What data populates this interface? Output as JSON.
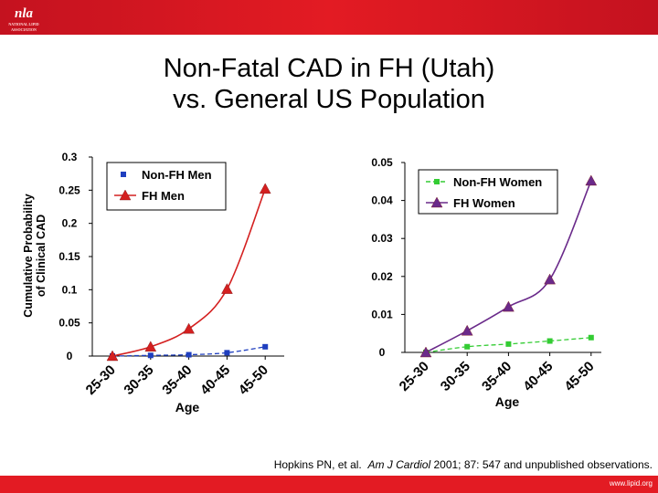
{
  "header": {
    "logo_text": "nla",
    "logo_subtext": "NATIONAL LIPID ASSOCIATION"
  },
  "title": {
    "line1": "Non-Fatal CAD in FH (Utah)",
    "line2": "vs. General US Population"
  },
  "colors": {
    "banner": "#e31b23",
    "non_fh_men": "#1f3fbf",
    "fh_men": "#d42020",
    "non_fh_women": "#33cc33",
    "fh_women": "#6a2a8a"
  },
  "chart_data": [
    {
      "type": "line",
      "ylabel": "Cumulative Probability of Clinical CAD",
      "ylabel_lines": [
        "Cumulative Probability",
        "of Clinical CAD"
      ],
      "xlabel": "Age",
      "categories": [
        "25-30",
        "30-35",
        "35-40",
        "40-45",
        "45-50"
      ],
      "ylim": [
        0,
        0.3
      ],
      "yticks": [
        "0",
        "0.05",
        "0.1",
        "0.15",
        "0.2",
        "0.25",
        "0.3"
      ],
      "legend_position": "top-left",
      "series": [
        {
          "name": "Non-FH Men",
          "values": [
            0,
            0.001,
            0.002,
            0.005,
            0.014
          ],
          "marker": "square",
          "style": "dashed",
          "color": "#1f3fbf"
        },
        {
          "name": "FH Men",
          "values": [
            0,
            0.014,
            0.041,
            0.101,
            0.252
          ],
          "marker": "triangle",
          "style": "solid",
          "color": "#d42020"
        }
      ]
    },
    {
      "type": "line",
      "xlabel": "Age",
      "categories": [
        "25-30",
        "30-35",
        "35-40",
        "40-45",
        "45-50"
      ],
      "ylim": [
        0,
        0.05
      ],
      "yticks": [
        "0",
        "0.01",
        "0.02",
        "0.03",
        "0.04",
        "0.05"
      ],
      "legend_position": "top-right",
      "series": [
        {
          "name": "Non-FH Women",
          "values": [
            0,
            0.0015,
            0.0022,
            0.003,
            0.0039
          ],
          "marker": "square",
          "style": "dashed",
          "color": "#33cc33"
        },
        {
          "name": "FH Women",
          "values": [
            0,
            0.0057,
            0.012,
            0.0192,
            0.0452
          ],
          "marker": "triangle",
          "style": "solid",
          "color": "#6a2a8a"
        }
      ]
    }
  ],
  "citation": {
    "authors": "Hopkins PN, et al.",
    "journal": "Am J Cardiol",
    "details": "2001; 87: 547 and unpublished observations."
  },
  "footer": {
    "url": "www.lipid.org"
  }
}
